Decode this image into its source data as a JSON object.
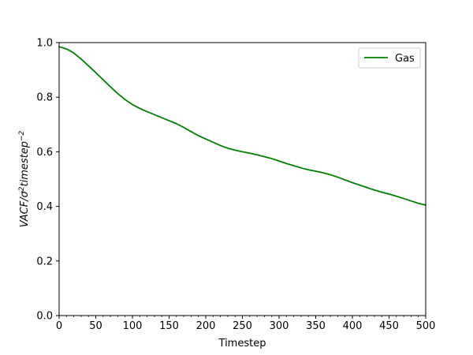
{
  "chart_data": {
    "type": "line",
    "xlabel": "Timestep",
    "ylabel_parts": {
      "base": "VACF/σ",
      "sup1": "2",
      "mid": "timestep",
      "sup2": "−2"
    },
    "xlim": [
      0,
      500
    ],
    "ylim": [
      0.0,
      1.0
    ],
    "x_ticks": [
      0,
      50,
      100,
      150,
      200,
      250,
      300,
      350,
      400,
      450,
      500
    ],
    "y_ticks": [
      0.0,
      0.2,
      0.4,
      0.6,
      0.8,
      1.0
    ],
    "y_tick_labels": [
      "0.0",
      "0.2",
      "0.4",
      "0.6",
      "0.8",
      "1.0"
    ],
    "x_minor_step": 10,
    "grid": false,
    "legend_position": "top-right",
    "series": [
      {
        "name": "Gas",
        "color": "#008000",
        "x": [
          0,
          10,
          20,
          30,
          40,
          50,
          60,
          70,
          80,
          90,
          100,
          110,
          120,
          130,
          140,
          150,
          160,
          170,
          180,
          190,
          200,
          210,
          220,
          230,
          240,
          250,
          260,
          270,
          280,
          290,
          300,
          310,
          320,
          330,
          340,
          350,
          360,
          370,
          380,
          390,
          400,
          410,
          420,
          430,
          440,
          450,
          460,
          470,
          480,
          490,
          500
        ],
        "y": [
          0.985,
          0.977,
          0.962,
          0.94,
          0.915,
          0.89,
          0.864,
          0.838,
          0.813,
          0.791,
          0.773,
          0.759,
          0.747,
          0.736,
          0.725,
          0.714,
          0.703,
          0.689,
          0.674,
          0.659,
          0.647,
          0.635,
          0.623,
          0.613,
          0.606,
          0.6,
          0.595,
          0.589,
          0.582,
          0.575,
          0.566,
          0.557,
          0.549,
          0.541,
          0.534,
          0.529,
          0.523,
          0.516,
          0.507,
          0.497,
          0.487,
          0.478,
          0.469,
          0.46,
          0.452,
          0.445,
          0.437,
          0.429,
          0.42,
          0.411,
          0.405
        ]
      }
    ]
  }
}
